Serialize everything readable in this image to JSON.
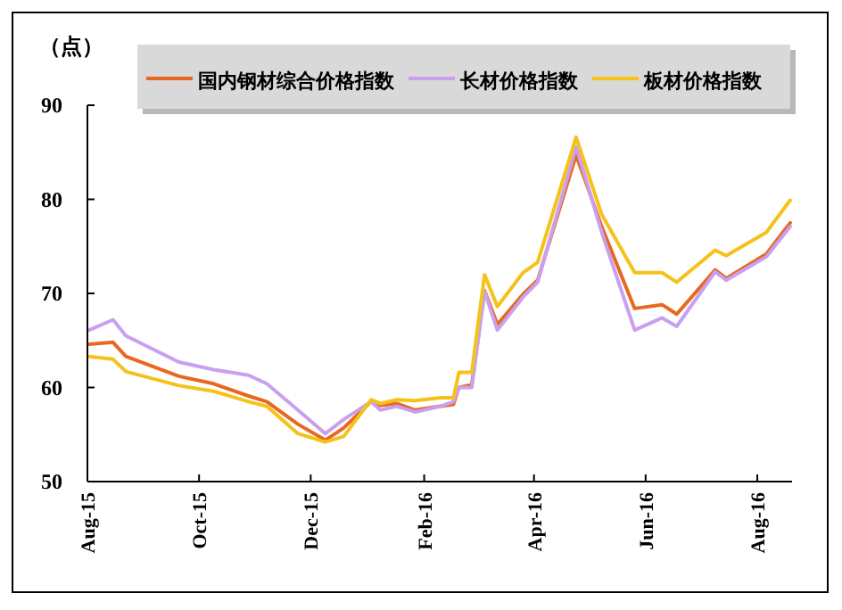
{
  "chart_data": {
    "type": "line",
    "ylabel": "（点）",
    "legend": "top",
    "grid": false,
    "marker": "none",
    "line_style": "solid",
    "x": [
      "2015-08-02",
      "2015-08-15",
      "2015-08-22",
      "2015-09-20",
      "2015-10-09",
      "2015-10-28",
      "2015-11-07",
      "2015-11-24",
      "2015-12-09",
      "2015-12-19",
      "2016-01-03",
      "2016-01-08",
      "2016-01-17",
      "2016-01-27",
      "2016-02-10",
      "2016-02-17",
      "2016-02-20",
      "2016-02-27",
      "2016-03-05",
      "2016-03-12",
      "2016-03-26",
      "2016-04-03",
      "2016-04-24",
      "2016-05-08",
      "2016-05-26",
      "2016-06-10",
      "2016-06-18",
      "2016-07-09",
      "2016-07-15",
      "2016-08-06",
      "2016-08-19"
    ],
    "xlim": [
      "2015-08-01",
      "2016-08-20"
    ],
    "xticks": [
      {
        "value": "2015-08-01",
        "label": "Aug-15"
      },
      {
        "value": "2015-10-01",
        "label": "Oct-15"
      },
      {
        "value": "2015-12-01",
        "label": "Dec-15"
      },
      {
        "value": "2016-02-01",
        "label": "Feb-16"
      },
      {
        "value": "2016-04-01",
        "label": "Apr-16"
      },
      {
        "value": "2016-06-01",
        "label": "Jun-16"
      },
      {
        "value": "2016-08-01",
        "label": "Aug-16"
      }
    ],
    "ylim": [
      50,
      90
    ],
    "yticks": [
      50,
      60,
      70,
      80,
      90
    ],
    "series": [
      {
        "name": "国内钢材综合价格指数",
        "color": "#e8681f",
        "values": [
          64.6,
          64.8,
          63.3,
          61.2,
          60.4,
          59.1,
          58.5,
          56.1,
          54.4,
          55.7,
          58.5,
          58.1,
          58.3,
          57.6,
          58.0,
          58.2,
          60.0,
          60.3,
          70.3,
          66.7,
          69.9,
          71.4,
          84.7,
          77.1,
          68.4,
          68.8,
          67.8,
          72.5,
          71.6,
          74.2,
          77.5
        ]
      },
      {
        "name": "长材价格指数",
        "color": "#c9a0f0",
        "values": [
          66.1,
          67.2,
          65.5,
          62.7,
          61.9,
          61.3,
          60.4,
          57.6,
          55.1,
          56.6,
          58.5,
          57.6,
          58.0,
          57.4,
          58.0,
          58.5,
          60.0,
          60.0,
          70.2,
          66.1,
          69.6,
          71.2,
          85.6,
          76.5,
          66.1,
          67.4,
          66.5,
          72.3,
          71.4,
          73.9,
          77.1
        ]
      },
      {
        "name": "板材价格指数",
        "color": "#f5c21b",
        "values": [
          63.3,
          63.0,
          61.7,
          60.2,
          59.6,
          58.5,
          58.0,
          55.1,
          54.2,
          54.8,
          58.7,
          58.3,
          58.7,
          58.6,
          58.9,
          58.9,
          61.6,
          61.6,
          72.0,
          68.6,
          72.2,
          73.3,
          86.6,
          78.4,
          72.2,
          72.2,
          71.2,
          74.6,
          74.0,
          76.5,
          79.9
        ]
      }
    ]
  }
}
